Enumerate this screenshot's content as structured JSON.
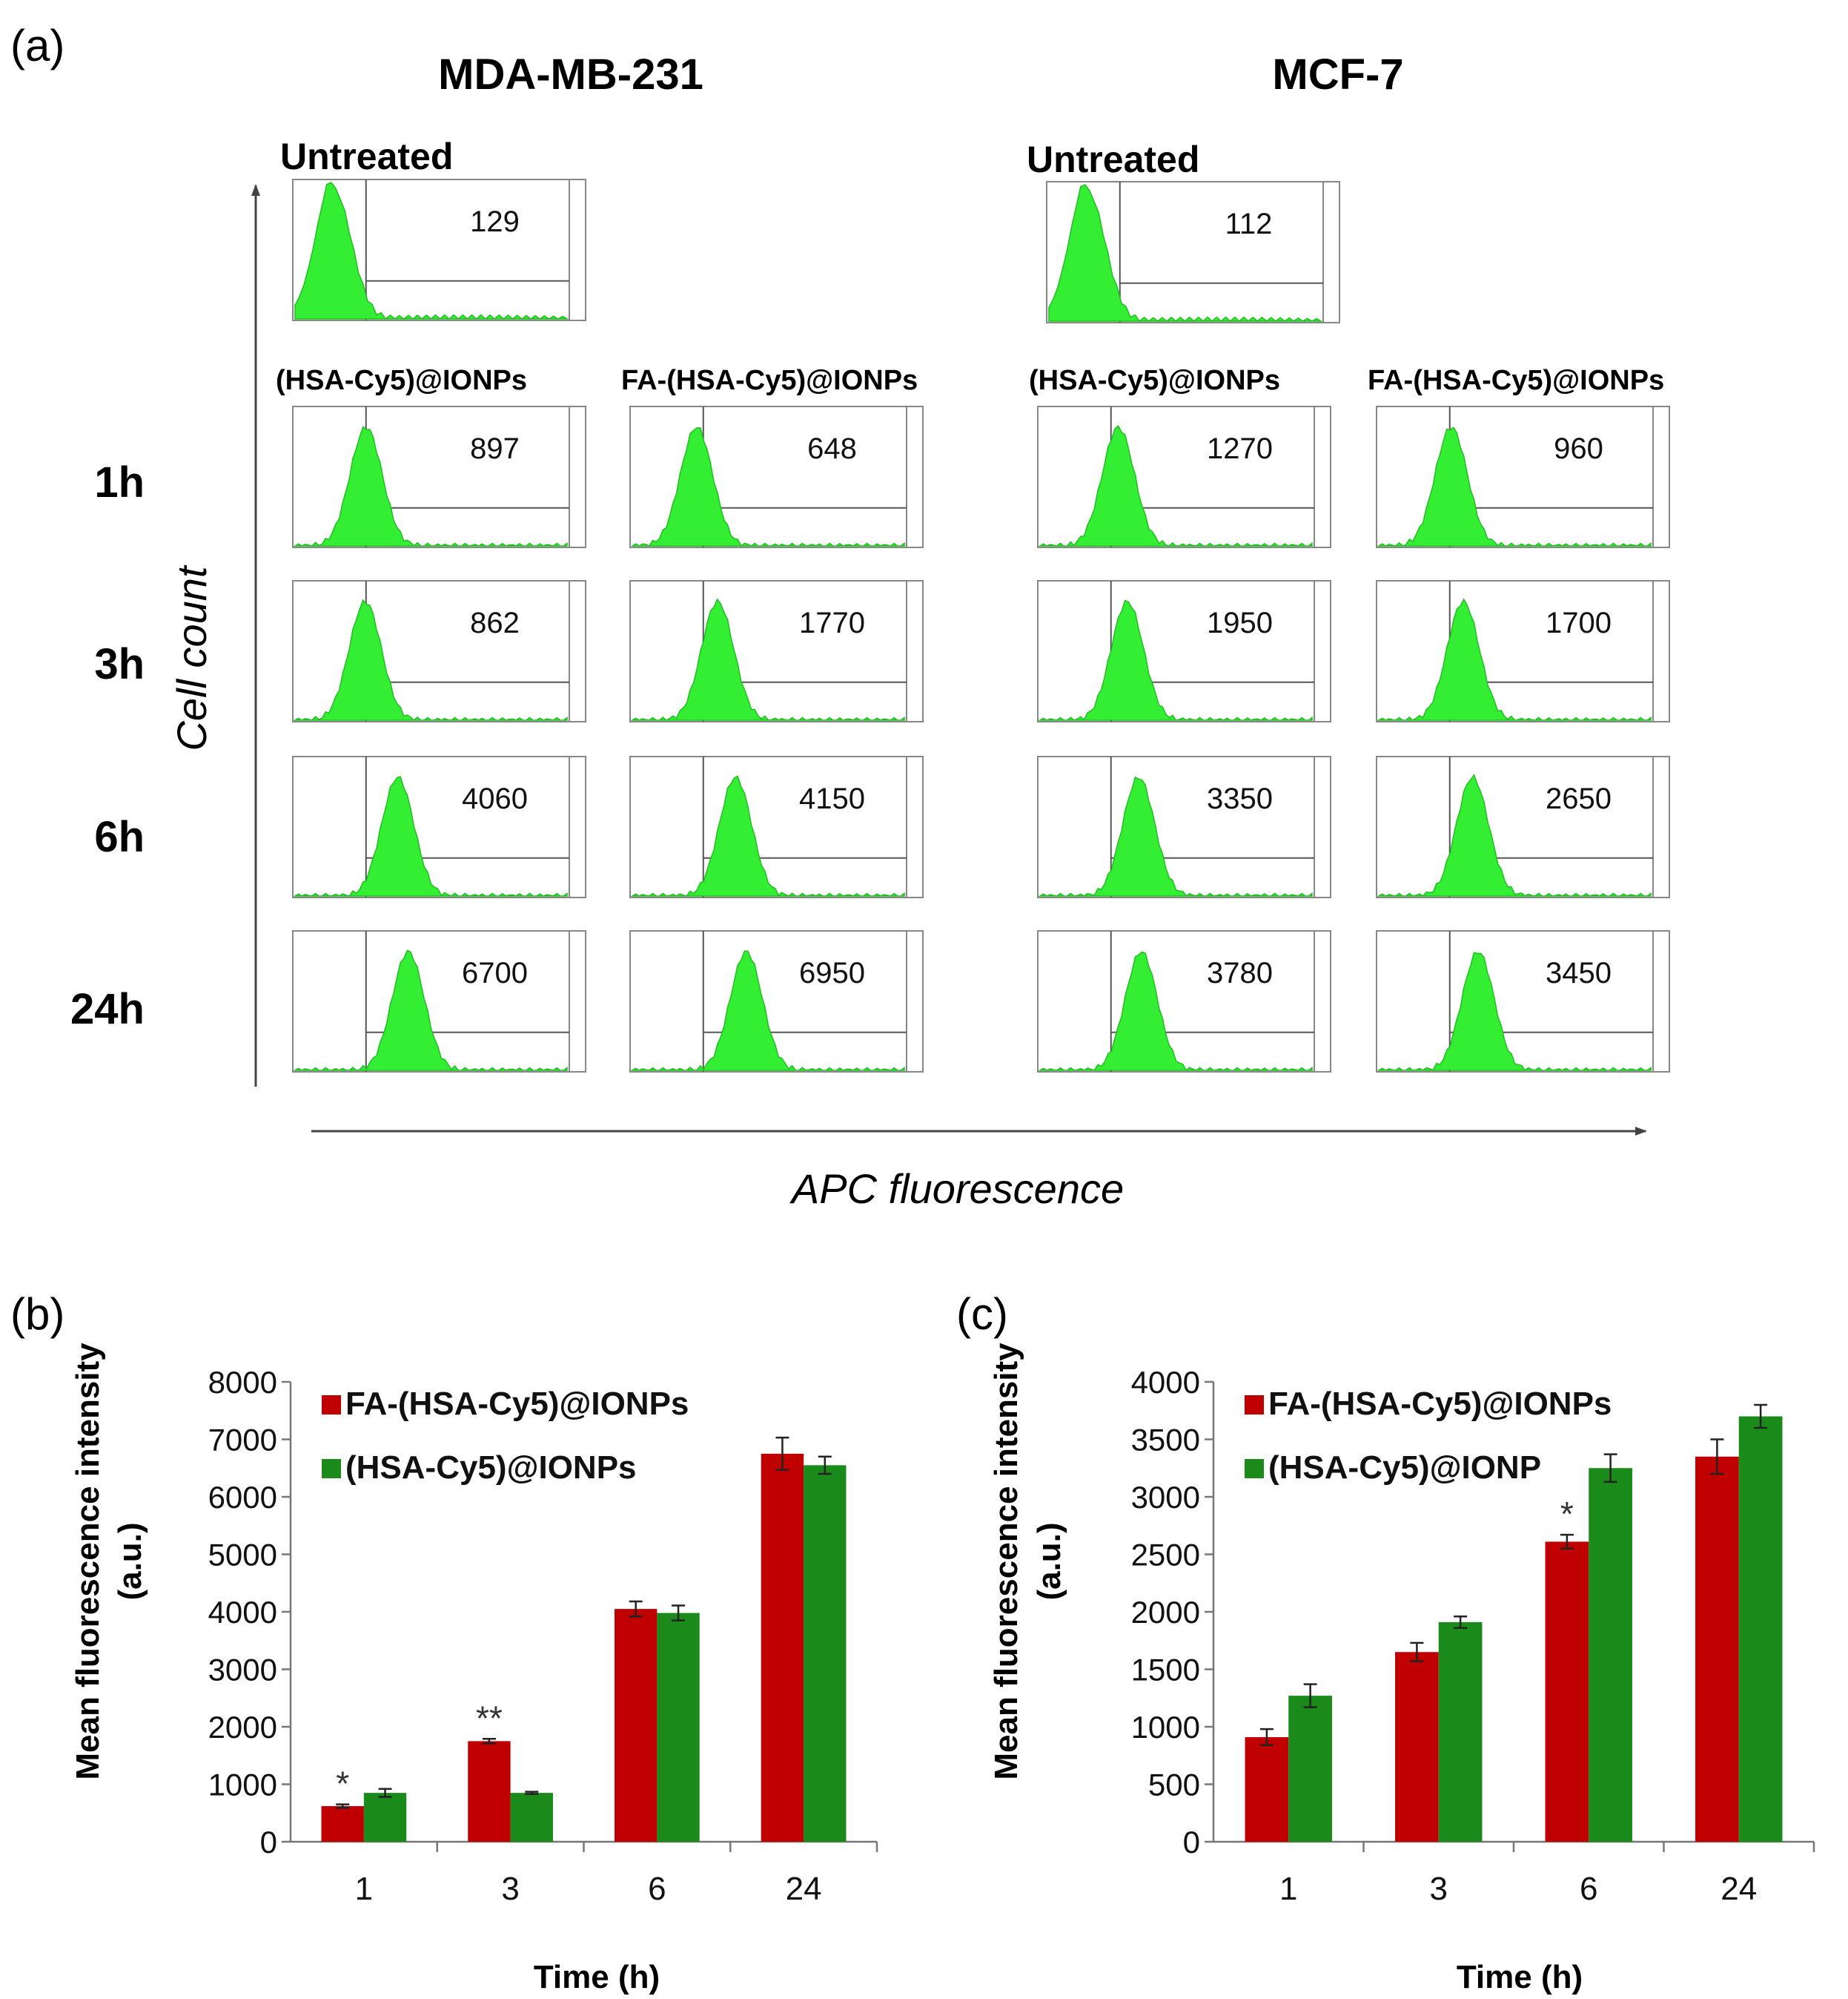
{
  "panel_a": {
    "label": "(a)",
    "cell_lines": [
      "MDA-MB-231",
      "MCF-7"
    ],
    "untreated_label": "Untreated",
    "group_labels": [
      "(HSA-Cy5)@IONPs",
      "FA-(HSA-Cy5)@IONPs"
    ],
    "time_labels": [
      "1h",
      "3h",
      "6h",
      "24h"
    ],
    "y_axis_label": "Cell count",
    "x_axis_label": "APC fluorescence",
    "untreated_values": [
      "129",
      "112"
    ],
    "histogram_values": [
      [
        [
          "897",
          "648"
        ],
        [
          "862",
          "1770"
        ],
        [
          "4060",
          "4150"
        ],
        [
          "6700",
          "6950"
        ]
      ],
      [
        [
          "1270",
          "960"
        ],
        [
          "1950",
          "1700"
        ],
        [
          "3350",
          "2650"
        ],
        [
          "3780",
          "3450"
        ]
      ]
    ],
    "histogram_color": "#33ee33"
  },
  "chart_data": [
    {
      "panel": "(b)",
      "type": "bar",
      "categories": [
        "1",
        "3",
        "6",
        "24"
      ],
      "xlabel": "Time (h)",
      "ylabel_lines": [
        "Mean fluorescence intensity",
        "(a.u.)"
      ],
      "ylim": [
        0,
        8000
      ],
      "yticks": [
        0,
        1000,
        2000,
        3000,
        4000,
        5000,
        6000,
        7000,
        8000
      ],
      "legend_position": "top-left",
      "series": [
        {
          "name": "FA-(HSA-Cy5)@IONPs",
          "color": "#c00000",
          "values": [
            620,
            1750,
            4050,
            6750
          ],
          "errors": [
            30,
            40,
            130,
            280
          ]
        },
        {
          "name": "(HSA-Cy5)@IONPs",
          "color": "#1a8a1a",
          "values": [
            850,
            850,
            3980,
            6550
          ],
          "errors": [
            70,
            20,
            130,
            150
          ]
        }
      ],
      "annotations": [
        {
          "category": "1",
          "series": 0,
          "text": "*"
        },
        {
          "category": "3",
          "series": 0,
          "text": "**"
        }
      ]
    },
    {
      "panel": "(c)",
      "type": "bar",
      "categories": [
        "1",
        "3",
        "6",
        "24"
      ],
      "xlabel": "Time (h)",
      "ylabel_lines": [
        "Mean fluorescence intensity",
        "(a.u.)"
      ],
      "ylim": [
        0,
        4000
      ],
      "yticks": [
        0,
        500,
        1000,
        1500,
        2000,
        2500,
        3000,
        3500,
        4000
      ],
      "legend_position": "top-left",
      "series": [
        {
          "name": "FA-(HSA-Cy5)@IONPs",
          "color": "#c00000",
          "values": [
            910,
            1650,
            2610,
            3350
          ],
          "errors": [
            70,
            80,
            60,
            150
          ]
        },
        {
          "name": "(HSA-Cy5)@IONP",
          "color": "#1a8a1a",
          "values": [
            1270,
            1910,
            3250,
            3700
          ],
          "errors": [
            100,
            50,
            120,
            100
          ]
        }
      ],
      "annotations": [
        {
          "category": "6",
          "series": 0,
          "text": "*"
        }
      ]
    }
  ]
}
